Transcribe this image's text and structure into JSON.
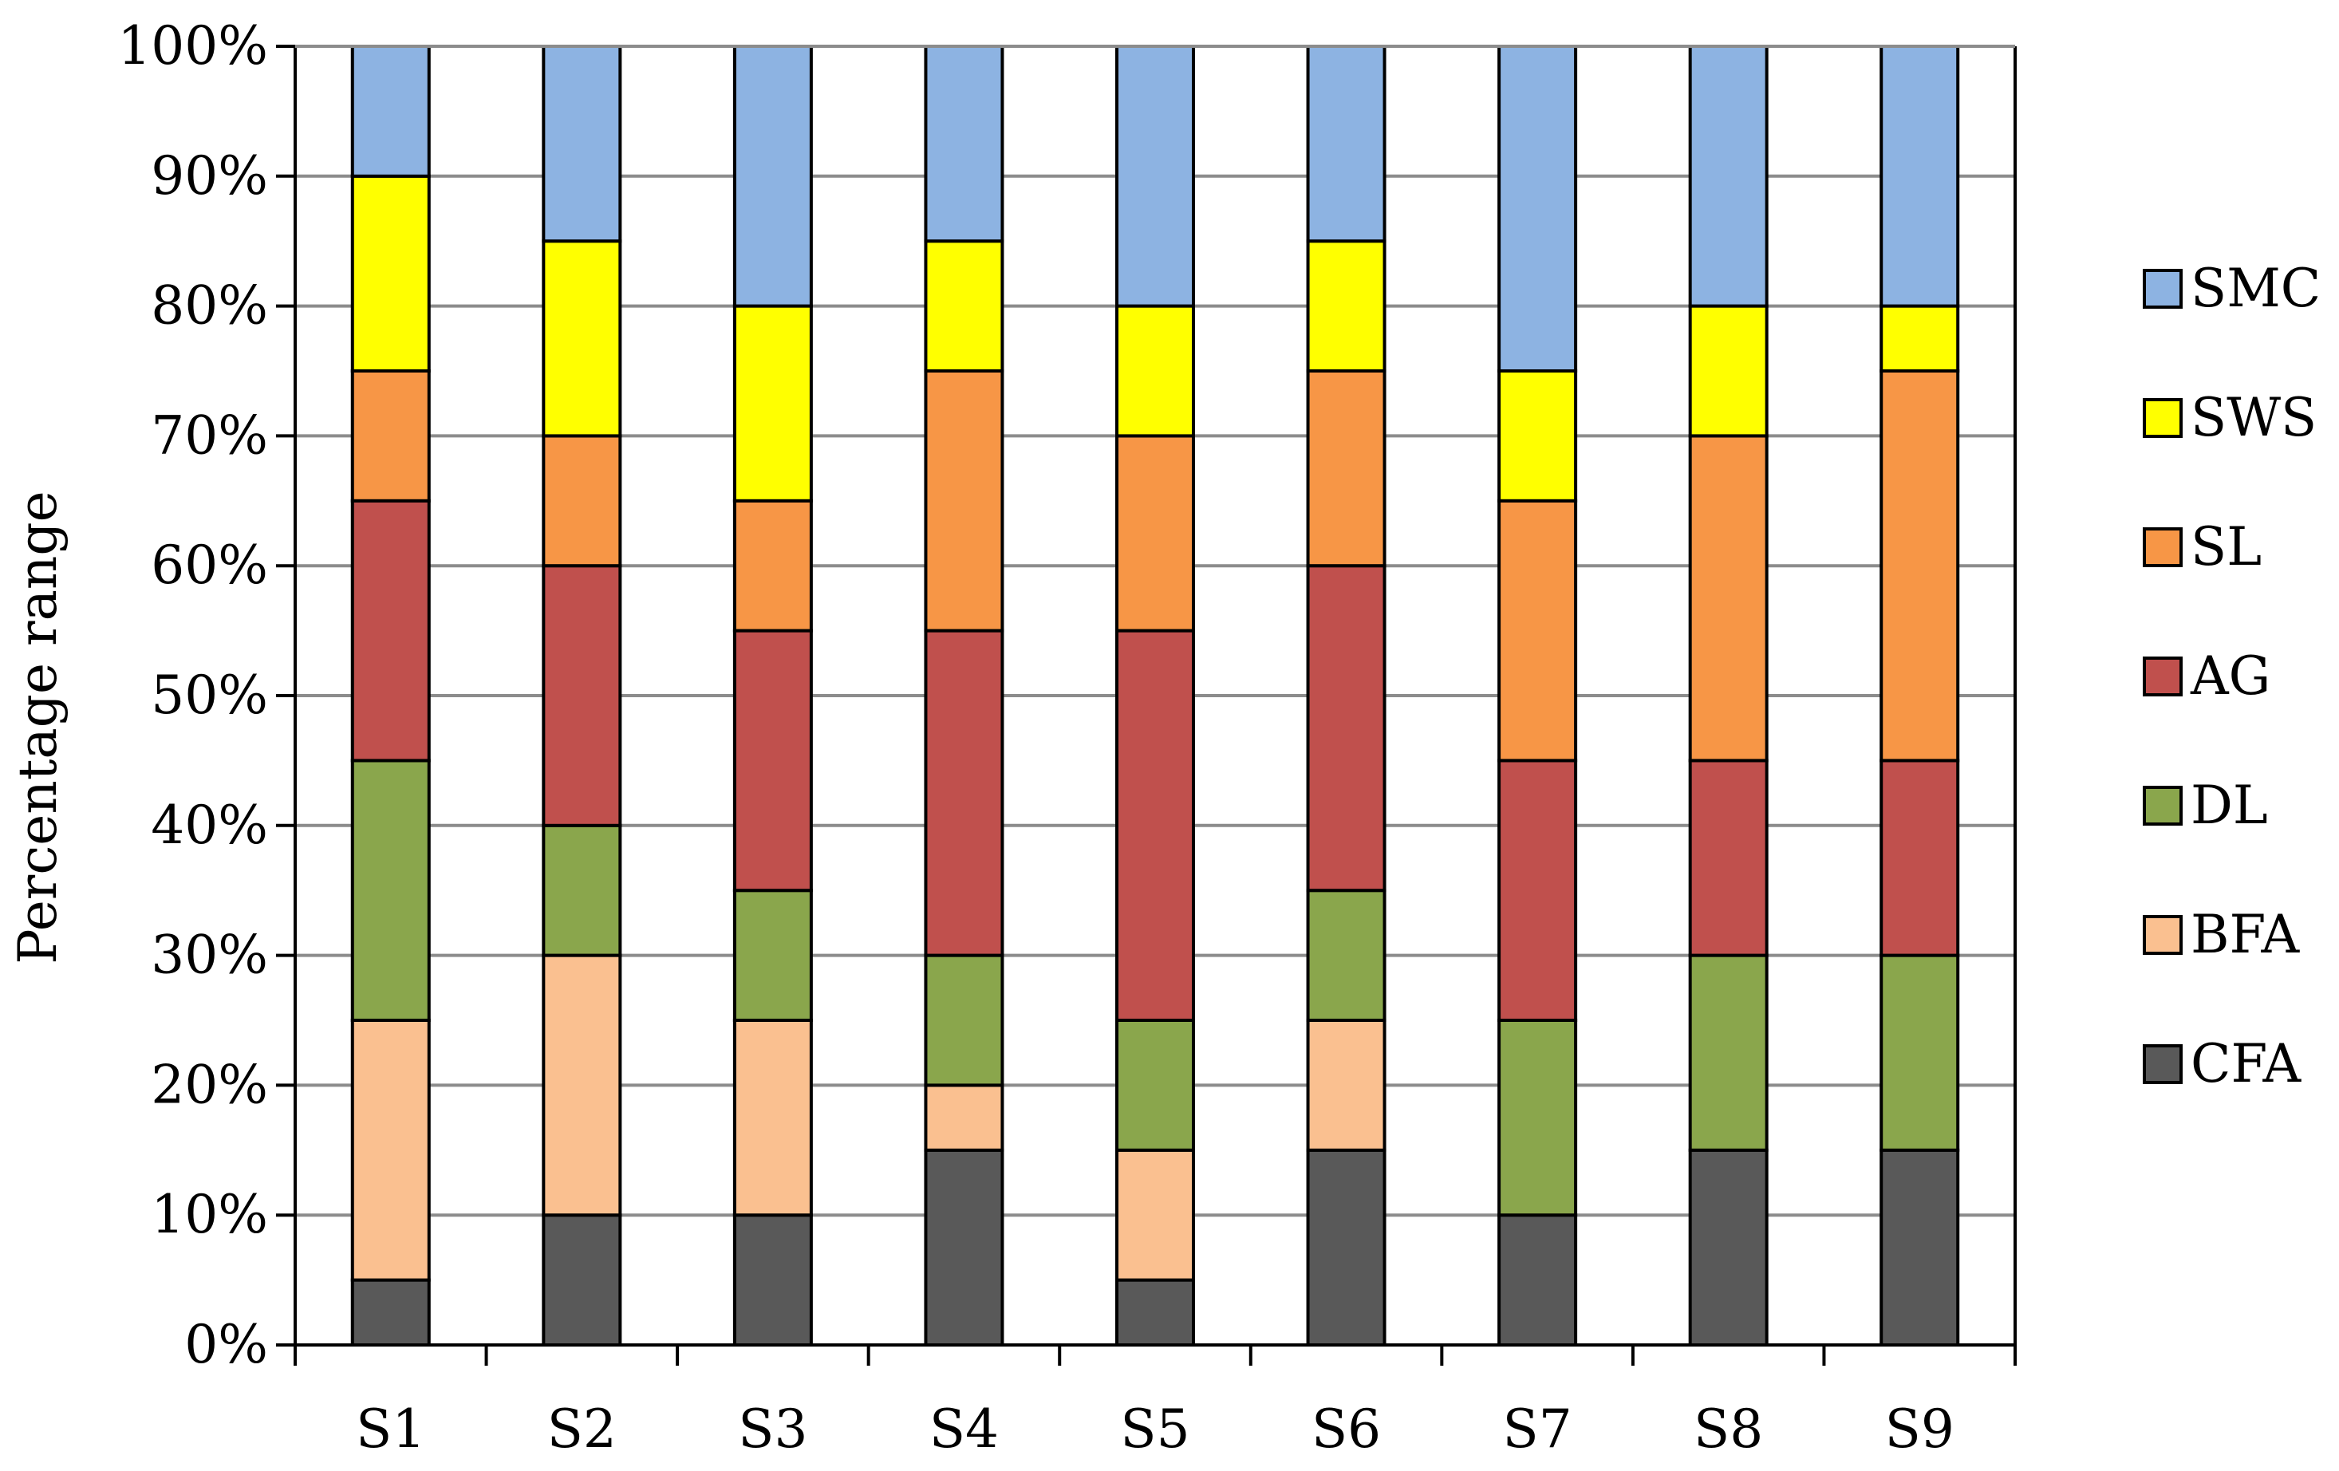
{
  "chart_data": {
    "type": "bar",
    "stacked": true,
    "normalized_percent": true,
    "title": "",
    "xlabel": "",
    "ylabel": "Percentage range",
    "ylim": [
      0,
      100
    ],
    "yticks": [
      "0%",
      "10%",
      "20%",
      "30%",
      "40%",
      "50%",
      "60%",
      "70%",
      "80%",
      "90%",
      "100%"
    ],
    "grid": "horizontal",
    "legend_position": "right",
    "categories": [
      "S1",
      "S2",
      "S3",
      "S4",
      "S5",
      "S6",
      "S7",
      "S8",
      "S9"
    ],
    "series": [
      {
        "name": "CFA",
        "color": "#595959",
        "values": [
          5,
          10,
          10,
          15,
          5,
          15,
          10,
          15,
          15
        ]
      },
      {
        "name": "BFA",
        "color": "#FAC090",
        "values": [
          20,
          20,
          15,
          5,
          10,
          10,
          0,
          0,
          0
        ]
      },
      {
        "name": "DL",
        "color": "#8AA64C",
        "values": [
          20,
          10,
          10,
          10,
          10,
          10,
          15,
          15,
          15
        ]
      },
      {
        "name": "AG",
        "color": "#C0504D",
        "values": [
          20,
          20,
          20,
          25,
          30,
          25,
          20,
          15,
          15
        ]
      },
      {
        "name": "SL",
        "color": "#F79646",
        "values": [
          10,
          10,
          10,
          20,
          15,
          15,
          20,
          25,
          30
        ]
      },
      {
        "name": "SWS",
        "color": "#FFFF00",
        "values": [
          15,
          15,
          15,
          10,
          10,
          10,
          10,
          10,
          5
        ]
      },
      {
        "name": "SMC",
        "color": "#8DB3E2",
        "values": [
          10,
          15,
          20,
          15,
          20,
          15,
          25,
          20,
          20
        ]
      }
    ]
  }
}
